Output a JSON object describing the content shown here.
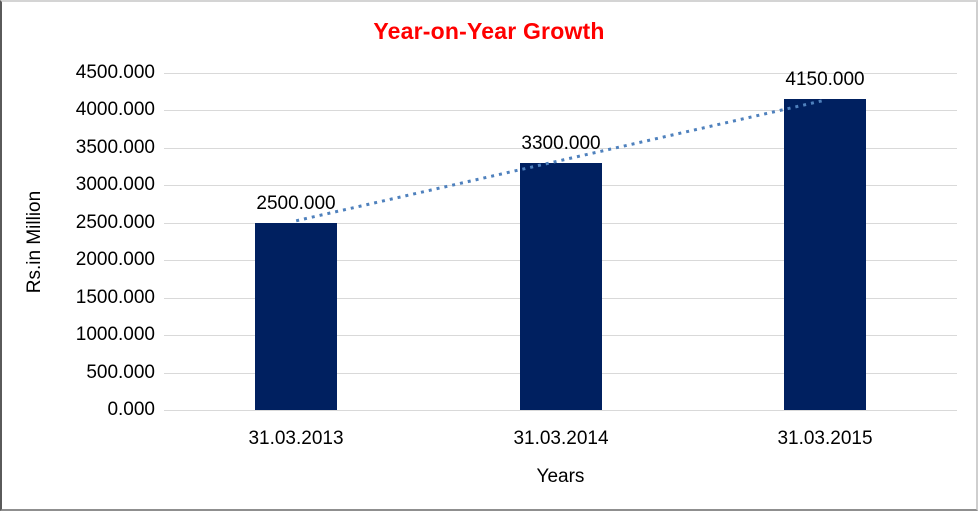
{
  "chart_data": {
    "type": "bar",
    "title": "Year-on-Year Growth",
    "xlabel": "Years",
    "ylabel": "Rs.in Million",
    "categories": [
      "31.03.2013",
      "31.03.2014",
      "31.03.2015"
    ],
    "values": [
      2500,
      3300,
      4150
    ],
    "data_labels": [
      "2500.000",
      "3300.000",
      "4150.000"
    ],
    "ytick_labels": [
      "0.000",
      "500.000",
      "1000.000",
      "1500.000",
      "2000.000",
      "2500.000",
      "3000.000",
      "3500.000",
      "4000.000",
      "4500.000"
    ],
    "ylim": [
      0,
      4500
    ],
    "ytick_step": 500,
    "grid": true,
    "legend_position": "none",
    "trendline": {
      "type": "linear",
      "style": "dotted",
      "start_value": 2500,
      "end_value": 4150
    },
    "colors": {
      "bar": "#002060",
      "title": "#ff0000",
      "gridline": "#d9d9d9",
      "trendline": "#4f81bd",
      "text": "#000000",
      "background": "#ffffff"
    }
  }
}
